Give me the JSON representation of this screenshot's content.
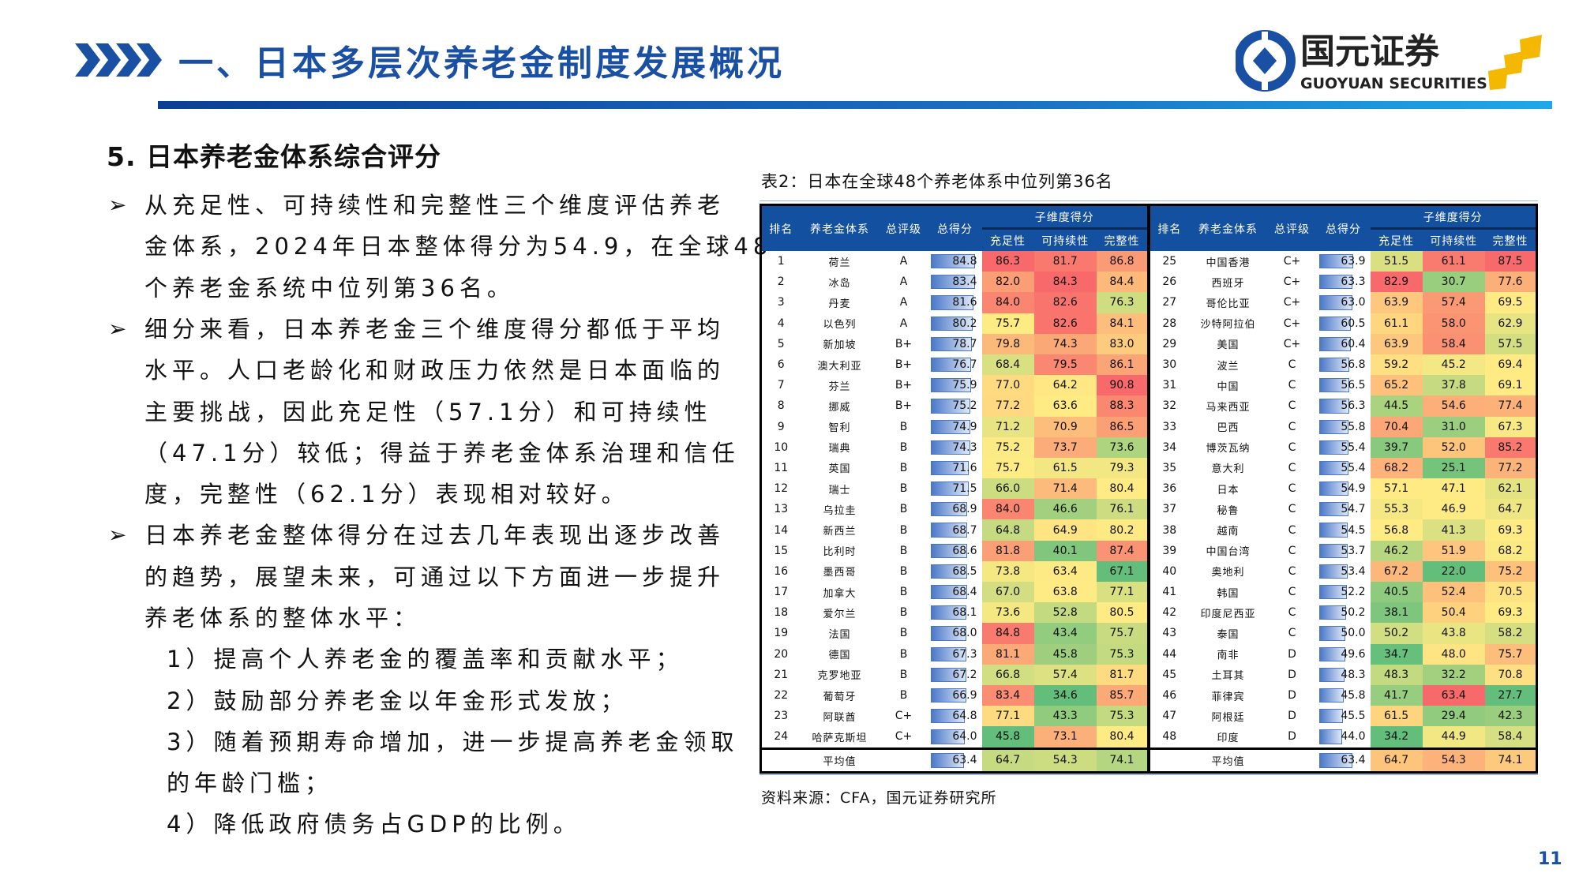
{
  "header": {
    "title": "一、日本多层次养老金制度发展概况",
    "logo": {
      "cn": "国元证券",
      "en": "GUOYUAN SECURITIES"
    }
  },
  "colors": {
    "brand_blue": "#1a50a3",
    "table_header": "#1450a0",
    "heat_low": "#63BE7B",
    "heat_mid": "#FFEB84",
    "heat_high": "#F8696B",
    "logo_gold": "#f5b800"
  },
  "section_title": "5. 日本养老金体系综合评分",
  "bullets": [
    {
      "lines": [
        "从充足性、可持续性和完整性三个维度评估养老",
        "金体系，2024年日本整体得分为54.9，在全球48",
        "个养老金系统中位列第36名。"
      ]
    },
    {
      "lines": [
        "细分来看，日本养老金三个维度得分都低于平均",
        "水平。人口老龄化和财政压力依然是日本面临的",
        "主要挑战，因此充足性（57.1分）和可持续性",
        "（47.1分）较低；得益于养老金体系治理和信任",
        "度，完整性（62.1分）表现相对较好。"
      ]
    },
    {
      "lines": [
        "日本养老金整体得分在过去几年表现出逐步改善",
        "的趋势，展望未来，可通过以下方面进一步提升",
        "养老体系的整体水平："
      ]
    }
  ],
  "sub_items": [
    {
      "lines": [
        "1）提高个人养老金的覆盖率和贡献水平；"
      ]
    },
    {
      "lines": [
        "2）鼓励部分养老金以年金形式发放；"
      ]
    },
    {
      "lines": [
        "3）随着预期寿命增加，进一步提高养老金领取",
        "的年龄门槛；"
      ]
    },
    {
      "lines": [
        "4）降低政府债务占GDP的比例。"
      ]
    }
  ],
  "table": {
    "caption": "表2：日本在全球48个养老体系中位列第36名",
    "headers": {
      "rank": "排名",
      "system": "养老金体系",
      "grade": "总评级",
      "total": "总得分",
      "group": "子维度得分",
      "adequacy": "充足性",
      "sustainability": "可持续性",
      "integrity": "完整性"
    },
    "left_rows": [
      [
        "1",
        "荷兰",
        "A",
        "84.8",
        "86.3",
        "81.7",
        "86.8"
      ],
      [
        "2",
        "冰岛",
        "A",
        "83.4",
        "82.0",
        "84.3",
        "84.4"
      ],
      [
        "3",
        "丹麦",
        "A",
        "81.6",
        "84.0",
        "82.6",
        "76.3"
      ],
      [
        "4",
        "以色列",
        "A",
        "80.2",
        "75.7",
        "82.6",
        "84.1"
      ],
      [
        "5",
        "新加坡",
        "B+",
        "78.7",
        "79.8",
        "74.3",
        "83.0"
      ],
      [
        "6",
        "澳大利亚",
        "B+",
        "76.7",
        "68.4",
        "79.5",
        "86.1"
      ],
      [
        "7",
        "芬兰",
        "B+",
        "75.9",
        "77.0",
        "64.2",
        "90.8"
      ],
      [
        "8",
        "挪威",
        "B+",
        "75.2",
        "77.2",
        "63.6",
        "88.3"
      ],
      [
        "9",
        "智利",
        "B",
        "74.9",
        "71.2",
        "70.9",
        "86.5"
      ],
      [
        "10",
        "瑞典",
        "B",
        "74.3",
        "75.2",
        "73.7",
        "73.6"
      ],
      [
        "11",
        "英国",
        "B",
        "71.6",
        "75.7",
        "61.5",
        "79.3"
      ],
      [
        "12",
        "瑞士",
        "B",
        "71.5",
        "66.0",
        "71.4",
        "80.4"
      ],
      [
        "13",
        "乌拉圭",
        "B",
        "68.9",
        "84.0",
        "46.6",
        "76.1"
      ],
      [
        "14",
        "新西兰",
        "B",
        "68.7",
        "64.8",
        "64.9",
        "80.2"
      ],
      [
        "15",
        "比利时",
        "B",
        "68.6",
        "81.8",
        "40.1",
        "87.4"
      ],
      [
        "16",
        "墨西哥",
        "B",
        "68.5",
        "73.8",
        "63.4",
        "67.1"
      ],
      [
        "17",
        "加拿大",
        "B",
        "68.4",
        "67.0",
        "63.8",
        "77.1"
      ],
      [
        "18",
        "爱尔兰",
        "B",
        "68.1",
        "73.6",
        "52.8",
        "80.5"
      ],
      [
        "19",
        "法国",
        "B",
        "68.0",
        "84.8",
        "43.4",
        "75.7"
      ],
      [
        "20",
        "德国",
        "B",
        "67.3",
        "81.1",
        "45.8",
        "75.3"
      ],
      [
        "21",
        "克罗地亚",
        "B",
        "67.2",
        "66.8",
        "57.4",
        "81.7"
      ],
      [
        "22",
        "葡萄牙",
        "B",
        "66.9",
        "83.4",
        "34.6",
        "85.7"
      ],
      [
        "23",
        "阿联酋",
        "C+",
        "64.8",
        "77.1",
        "43.3",
        "75.3"
      ],
      [
        "24",
        "哈萨克斯坦",
        "C+",
        "64.0",
        "45.8",
        "73.1",
        "80.4"
      ]
    ],
    "right_rows": [
      [
        "25",
        "中国香港",
        "C+",
        "63.9",
        "51.5",
        "61.1",
        "87.5"
      ],
      [
        "26",
        "西班牙",
        "C+",
        "63.3",
        "82.9",
        "30.7",
        "77.6"
      ],
      [
        "27",
        "哥伦比亚",
        "C+",
        "63.0",
        "63.9",
        "57.4",
        "69.5"
      ],
      [
        "28",
        "沙特阿拉伯",
        "C+",
        "60.5",
        "61.1",
        "58.0",
        "62.9"
      ],
      [
        "29",
        "美国",
        "C+",
        "60.4",
        "63.9",
        "58.4",
        "57.5"
      ],
      [
        "30",
        "波兰",
        "C",
        "56.8",
        "59.2",
        "45.2",
        "69.4"
      ],
      [
        "31",
        "中国",
        "C",
        "56.5",
        "65.2",
        "37.8",
        "69.1"
      ],
      [
        "32",
        "马来西亚",
        "C",
        "56.3",
        "44.5",
        "54.6",
        "77.4"
      ],
      [
        "33",
        "巴西",
        "C",
        "55.8",
        "70.4",
        "31.0",
        "67.3"
      ],
      [
        "34",
        "博茨瓦纳",
        "C",
        "55.4",
        "39.7",
        "52.0",
        "85.2"
      ],
      [
        "35",
        "意大利",
        "C",
        "55.4",
        "68.2",
        "25.1",
        "77.2"
      ],
      [
        "36",
        "日本",
        "C",
        "54.9",
        "57.1",
        "47.1",
        "62.1"
      ],
      [
        "37",
        "秘鲁",
        "C",
        "54.7",
        "55.3",
        "46.9",
        "64.7"
      ],
      [
        "38",
        "越南",
        "C",
        "54.5",
        "56.8",
        "41.3",
        "69.3"
      ],
      [
        "39",
        "中国台湾",
        "C",
        "53.7",
        "46.2",
        "51.9",
        "68.2"
      ],
      [
        "40",
        "奥地利",
        "C",
        "53.4",
        "67.2",
        "22.0",
        "75.2"
      ],
      [
        "41",
        "韩国",
        "C",
        "52.2",
        "40.5",
        "52.4",
        "70.5"
      ],
      [
        "42",
        "印度尼西亚",
        "C",
        "50.2",
        "38.1",
        "50.4",
        "69.3"
      ],
      [
        "43",
        "泰国",
        "C",
        "50.0",
        "50.2",
        "43.8",
        "58.2"
      ],
      [
        "44",
        "南非",
        "D",
        "49.6",
        "34.7",
        "48.0",
        "75.7"
      ],
      [
        "45",
        "土耳其",
        "D",
        "48.3",
        "48.3",
        "32.2",
        "70.8"
      ],
      [
        "46",
        "菲律宾",
        "D",
        "45.8",
        "41.7",
        "63.4",
        "27.7"
      ],
      [
        "47",
        "阿根廷",
        "D",
        "45.5",
        "61.5",
        "29.4",
        "42.3"
      ],
      [
        "48",
        "印度",
        "D",
        "44.0",
        "34.2",
        "44.9",
        "58.4"
      ]
    ],
    "average": {
      "label": "平均值",
      "total": "63.4",
      "adequacy": "64.7",
      "sustainability": "54.3",
      "integrity": "74.1"
    }
  },
  "source": "资料来源：CFA，国元证券研究所",
  "page_number": "11"
}
